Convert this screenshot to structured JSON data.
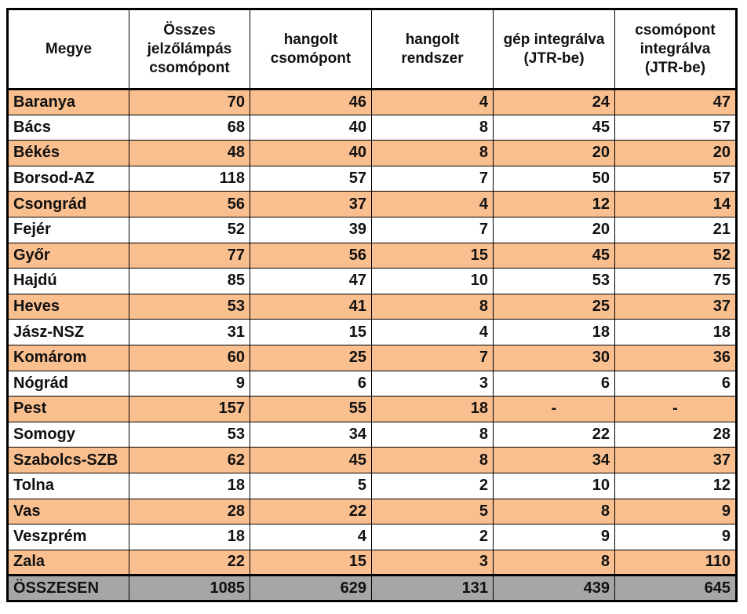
{
  "headers": [
    "Megye",
    "Összes jelzőlámpás csomópont",
    "hangolt csomópont",
    "hangolt rendszer",
    "gép integrálva (JTR-be)",
    "csomópont integrálva (JTR-be)"
  ],
  "rows": [
    [
      "Baranya",
      "70",
      "46",
      "4",
      "24",
      "47"
    ],
    [
      "Bács",
      "68",
      "40",
      "8",
      "45",
      "57"
    ],
    [
      "Békés",
      "48",
      "40",
      "8",
      "20",
      "20"
    ],
    [
      "Borsod-AZ",
      "118",
      "57",
      "7",
      "50",
      "57"
    ],
    [
      "Csongrád",
      "56",
      "37",
      "4",
      "12",
      "14"
    ],
    [
      "Fejér",
      "52",
      "39",
      "7",
      "20",
      "21"
    ],
    [
      "Győr",
      "77",
      "56",
      "15",
      "45",
      "52"
    ],
    [
      "Hajdú",
      "85",
      "47",
      "10",
      "53",
      "75"
    ],
    [
      "Heves",
      "53",
      "41",
      "8",
      "25",
      "37"
    ],
    [
      "Jász-NSZ",
      "31",
      "15",
      "4",
      "18",
      "18"
    ],
    [
      "Komárom",
      "60",
      "25",
      "7",
      "30",
      "36"
    ],
    [
      "Nógrád",
      "9",
      "6",
      "3",
      "6",
      "6"
    ],
    [
      "Pest",
      "157",
      "55",
      "18",
      "-",
      "-"
    ],
    [
      "Somogy",
      "53",
      "34",
      "8",
      "22",
      "28"
    ],
    [
      "Szabolcs-SZB",
      "62",
      "45",
      "8",
      "34",
      "37"
    ],
    [
      "Tolna",
      "18",
      "5",
      "2",
      "10",
      "12"
    ],
    [
      "Vas",
      "28",
      "22",
      "5",
      "8",
      "9"
    ],
    [
      "Veszprém",
      "18",
      "4",
      "2",
      "9",
      "9"
    ],
    [
      "Zala",
      "22",
      "15",
      "3",
      "8",
      "110"
    ]
  ],
  "total": [
    "ÖSSZESEN",
    "1085",
    "629",
    "131",
    "439",
    "645"
  ],
  "colors": {
    "odd_row": "#fabf8f",
    "even_row": "#ffffff",
    "total_row": "#a6a6a6"
  }
}
